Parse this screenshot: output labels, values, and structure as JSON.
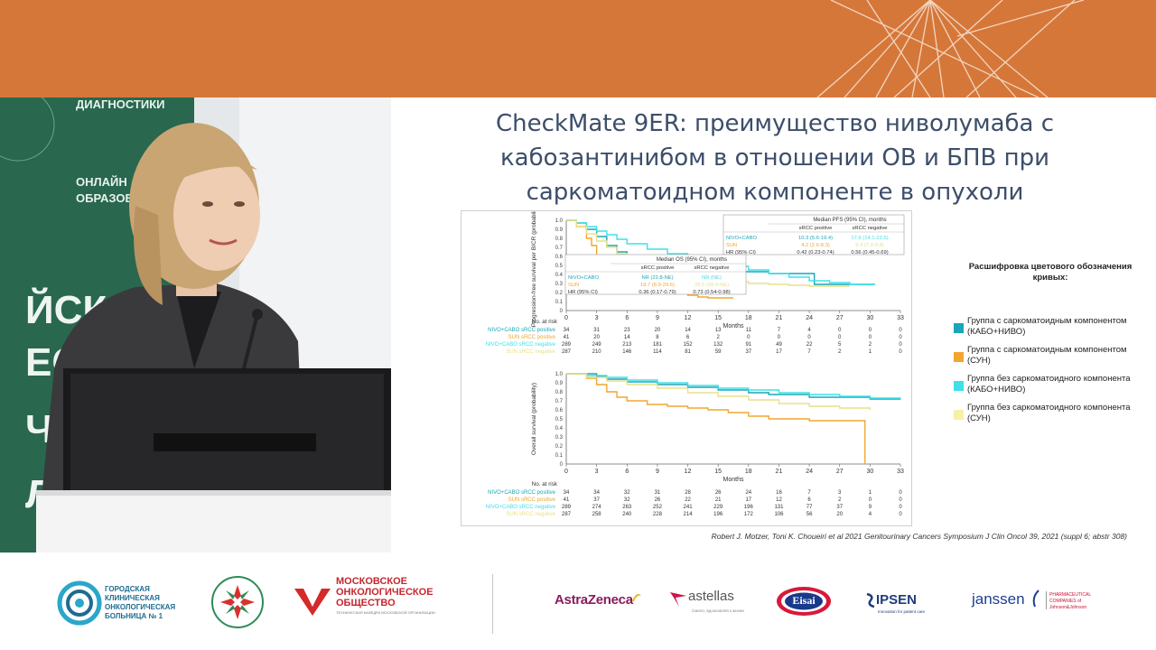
{
  "slide": {
    "title_lines": [
      "CheckMate 9ER: преимущество ниволумаба с",
      "кабозантинибом в отношении ОВ и БПВ при",
      "саркоматоидном компоненте в опухоли"
    ],
    "citation": "Robert J. Motzer, Toni K. Choueiri et al 2021 Genitourinary Cancers Symposium J Clin Oncol 39, 2021 (suppl 6; abstr 308)"
  },
  "video": {
    "banner_line1": "ДИАГНОСТИКИ",
    "banner_line2": "ОНЛАЙН",
    "banner_line3": "ОБРАЗОВАН",
    "side_letters": [
      "ЙСКОЕ",
      "ЕСТВ",
      "ЧЕС",
      "ЛО"
    ]
  },
  "legend": {
    "title": "Расшифровка цветового обозначения кривых:",
    "items": [
      {
        "label": "Группа с саркоматоидным компонентом (КАБО+НИВО)",
        "color": "#1aa6b7"
      },
      {
        "label": "Группа с саркоматоидным компонентом (СУН)",
        "color": "#f2a531"
      },
      {
        "label": "Группа без саркоматоидного компонента (КАБО+НИВО)",
        "color": "#3fe0e8"
      },
      {
        "label": "Группа без саркоматоидного компонента (СУН)",
        "color": "#f7f0a6"
      }
    ]
  },
  "chart_data": [
    {
      "type": "line",
      "ylabel": "Progression-free survival per BICR (probability)",
      "xlabel": "Months",
      "x_ticks": [
        0,
        3,
        6,
        9,
        12,
        15,
        18,
        21,
        24,
        27,
        30,
        33
      ],
      "y_ticks": [
        "0",
        "0.1",
        "0.2",
        "0.3",
        "0.4",
        "0.5",
        "0.6",
        "0.7",
        "0.8",
        "0.9",
        "1.0"
      ],
      "xlim": [
        0,
        33
      ],
      "ylim": [
        0,
        1
      ],
      "table": {
        "title": "Median PFS (95% CI), months",
        "columns": [
          "",
          "sRCC positive",
          "sRCC negative"
        ],
        "rows": [
          [
            "NIVO+CABO",
            "10.3 (5.6-19.4)",
            "17.9 (14.1-22.6)"
          ],
          [
            "SUN",
            "4.2 (2.6-8.3)",
            "8.4 (7.0-9.8)"
          ],
          [
            "HR (95% CI)",
            "0.42 (0.23-0.74)",
            "0.56 (0.45-0.69)"
          ]
        ]
      },
      "series": [
        {
          "name": "NIVO+CABO sRCC positive",
          "color": "#1aa6b7",
          "x": [
            0,
            1,
            2,
            3,
            4,
            5,
            6,
            8,
            10,
            12,
            14,
            16,
            18,
            20,
            22,
            24.5,
            24.5,
            27,
            30.5
          ],
          "y": [
            1.0,
            0.97,
            0.9,
            0.82,
            0.72,
            0.65,
            0.6,
            0.55,
            0.5,
            0.47,
            0.45,
            0.43,
            0.43,
            0.41,
            0.41,
            0.4,
            0.29,
            0.29,
            0.29
          ]
        },
        {
          "name": "SUN sRCC positive",
          "color": "#f2a531",
          "x": [
            0,
            1,
            2,
            2.5,
            3,
            4,
            5,
            6,
            7,
            8,
            9,
            10,
            11,
            12,
            13,
            14,
            15,
            16.5
          ],
          "y": [
            1.0,
            0.93,
            0.8,
            0.72,
            0.6,
            0.5,
            0.42,
            0.37,
            0.3,
            0.27,
            0.25,
            0.22,
            0.19,
            0.17,
            0.15,
            0.14,
            0.14,
            0.14
          ]
        },
        {
          "name": "NIVO+CABO sRCC negative",
          "color": "#3fe0e8",
          "x": [
            0,
            1,
            2,
            3,
            4,
            5,
            6,
            8,
            10,
            12,
            14,
            16,
            18,
            20,
            22,
            24,
            26,
            28,
            30.5
          ],
          "y": [
            1.0,
            0.97,
            0.93,
            0.88,
            0.84,
            0.79,
            0.74,
            0.68,
            0.63,
            0.58,
            0.53,
            0.49,
            0.45,
            0.41,
            0.37,
            0.33,
            0.31,
            0.29,
            0.29
          ]
        },
        {
          "name": "SUN sRCC negative",
          "color": "#e8e08a",
          "x": [
            0,
            1,
            2,
            3,
            4,
            5,
            6,
            8,
            10,
            12,
            14,
            16,
            18,
            20,
            22,
            24,
            26,
            28
          ],
          "y": [
            1.0,
            0.93,
            0.85,
            0.77,
            0.7,
            0.63,
            0.56,
            0.47,
            0.41,
            0.37,
            0.34,
            0.32,
            0.3,
            0.29,
            0.28,
            0.27,
            0.27,
            0.27
          ]
        }
      ],
      "risk_table": {
        "title": "No. at risk",
        "rows": [
          {
            "label": "NIVO+CABO sRCC positive",
            "color": "#1aa6b7",
            "values": [
              "34",
              "31",
              "23",
              "20",
              "14",
              "13",
              "11",
              "7",
              "4",
              "0",
              "0",
              "0"
            ]
          },
          {
            "label": "SUN sRCC positive",
            "color": "#f2a531",
            "values": [
              "41",
              "20",
              "14",
              "8",
              "6",
              "2",
              "0",
              "0",
              "0",
              "0",
              "0",
              "0"
            ]
          },
          {
            "label": "NIVO+CABO sRCC negative",
            "color": "#3fe0e8",
            "values": [
              "289",
              "249",
              "213",
              "181",
              "152",
              "132",
              "91",
              "49",
              "22",
              "5",
              "2",
              "0"
            ]
          },
          {
            "label": "SUN sRCC negative",
            "color": "#e8e08a",
            "values": [
              "287",
              "210",
              "146",
              "114",
              "81",
              "59",
              "37",
              "17",
              "7",
              "2",
              "1",
              "0"
            ]
          }
        ]
      }
    },
    {
      "type": "line",
      "ylabel": "Overall survival (probability)",
      "xlabel": "Months",
      "x_ticks": [
        0,
        3,
        6,
        9,
        12,
        15,
        18,
        21,
        24,
        27,
        30,
        33
      ],
      "y_ticks": [
        "0",
        "0.1",
        "0.2",
        "0.3",
        "0.4",
        "0.5",
        "0.6",
        "0.7",
        "0.8",
        "0.9",
        "1.0"
      ],
      "xlim": [
        0,
        33
      ],
      "ylim": [
        0,
        1
      ],
      "table": {
        "title": "Median OS (95% CI), months",
        "columns": [
          "",
          "sRCC positive",
          "sRCC negative"
        ],
        "rows": [
          [
            "NIVO+CABO",
            "NR (22.8-NE)",
            "NR (NE)"
          ],
          [
            "SUN",
            "19.7 (8.9-29.6)",
            "29.5 (28.4-NE)"
          ],
          [
            "HR (95% CI)",
            "0.36 (0.17-0.79)",
            "0.73 (0.54-0.98)"
          ]
        ]
      },
      "series": [
        {
          "name": "NIVO+CABO sRCC positive",
          "color": "#1aa6b7",
          "x": [
            0,
            2,
            3,
            4,
            6,
            9,
            12,
            15,
            18,
            20,
            24,
            30,
            33
          ],
          "y": [
            1.0,
            1.0,
            0.97,
            0.94,
            0.91,
            0.88,
            0.85,
            0.82,
            0.79,
            0.77,
            0.74,
            0.72,
            0.72
          ]
        },
        {
          "name": "SUN sRCC positive",
          "color": "#f2a531",
          "x": [
            0,
            2,
            3,
            4,
            5,
            6,
            8,
            10,
            12,
            14,
            16,
            18,
            20,
            24,
            29.5,
            29.5
          ],
          "y": [
            1.0,
            0.95,
            0.88,
            0.8,
            0.74,
            0.7,
            0.66,
            0.64,
            0.62,
            0.6,
            0.57,
            0.53,
            0.5,
            0.48,
            0.48,
            0.0
          ]
        },
        {
          "name": "NIVO+CABO sRCC negative",
          "color": "#3fe0e8",
          "x": [
            0,
            2,
            4,
            6,
            9,
            12,
            15,
            18,
            21,
            24,
            27,
            30,
            33
          ],
          "y": [
            1.0,
            0.98,
            0.96,
            0.93,
            0.9,
            0.87,
            0.84,
            0.82,
            0.79,
            0.77,
            0.75,
            0.73,
            0.71
          ]
        },
        {
          "name": "SUN sRCC negative",
          "color": "#e8e08a",
          "x": [
            0,
            2,
            4,
            6,
            9,
            12,
            15,
            18,
            21,
            24,
            27,
            30
          ],
          "y": [
            1.0,
            0.96,
            0.92,
            0.88,
            0.84,
            0.79,
            0.75,
            0.71,
            0.67,
            0.64,
            0.62,
            0.6
          ]
        }
      ],
      "risk_table": {
        "title": "No. at risk",
        "rows": [
          {
            "label": "NIVO+CABO sRCC positive",
            "color": "#1aa6b7",
            "values": [
              "34",
              "34",
              "32",
              "31",
              "28",
              "26",
              "24",
              "16",
              "7",
              "3",
              "1",
              "0"
            ]
          },
          {
            "label": "SUN sRCC positive",
            "color": "#f2a531",
            "values": [
              "41",
              "37",
              "32",
              "26",
              "22",
              "21",
              "17",
              "12",
              "6",
              "2",
              "0",
              "0"
            ]
          },
          {
            "label": "NIVO+CABO sRCC negative",
            "color": "#3fe0e8",
            "values": [
              "289",
              "274",
              "263",
              "252",
              "241",
              "229",
              "196",
              "131",
              "77",
              "37",
              "9",
              "0"
            ]
          },
          {
            "label": "SUN sRCC negative",
            "color": "#e8e08a",
            "values": [
              "287",
              "258",
              "240",
              "228",
              "214",
              "196",
              "172",
              "106",
              "56",
              "20",
              "4",
              "0"
            ]
          }
        ]
      }
    }
  ],
  "footer": {
    "hospital_logo": "ГОРОДСКАЯ КЛИНИЧЕСКАЯ ОНКОЛОГИЧЕСКАЯ БОЛЬНИЦА № 1",
    "society_logo_line1": "МОСКОВСКОЕ",
    "society_logo_line2": "ОНКОЛОГИЧЕСКОЕ",
    "society_logo_line3": "ОБЩЕСТВО",
    "society_logo_sub": "ТЕХНИЧЕСКАЯ КАФЕДРА МОСКОВСКОЙ ОРГАНИЗАЦИИ",
    "sponsors": [
      "AstraZeneca",
      "astellas",
      "Eisai",
      "IPSEN",
      "janssen"
    ],
    "astellas_sub": "Смело, вдохновляя к жизни",
    "ipsen_sub": "Innovation for patient care",
    "janssen_sub": "PHARMACEUTICAL COMPANIES of Johnson&Johnson"
  }
}
